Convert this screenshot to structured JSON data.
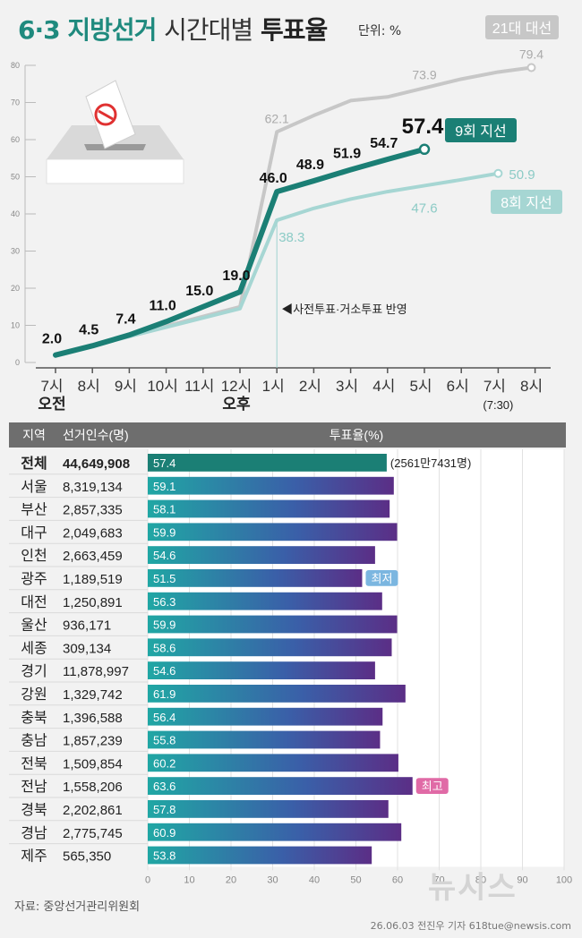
{
  "header": {
    "title_num": "6·3",
    "title_main": "지방선거",
    "title_sub": "시간대별",
    "title_end": "투표율",
    "unit": "단위: %"
  },
  "chart_data": [
    {
      "type": "line",
      "ylim": [
        0,
        80
      ],
      "yticks": [
        0,
        10,
        20,
        30,
        40,
        50,
        60,
        70,
        80
      ],
      "categories": [
        "7시",
        "8시",
        "9시",
        "10시",
        "11시",
        "12시",
        "1시",
        "2시",
        "3시",
        "4시",
        "5시",
        "6시",
        "7시",
        "8시"
      ],
      "x_sub_labels": [
        {
          "index": 0,
          "text": "오전"
        },
        {
          "index": 5,
          "text": "오후"
        },
        {
          "index": 12,
          "text": "(7:30)"
        }
      ],
      "annotation": "◀사전투표·거소투표 반영",
      "series": [
        {
          "name": "21대 대선",
          "color": "#c7c7c7",
          "points": [
            [
              0,
              2.0
            ],
            [
              5,
              15.0
            ],
            [
              6,
              62.1
            ],
            [
              7,
              66.5
            ],
            [
              8,
              70.5
            ],
            [
              9,
              71.5
            ],
            [
              10,
              73.9
            ],
            [
              11,
              76.3
            ],
            [
              12,
              78.2
            ],
            [
              12.9,
              79.4
            ]
          ],
          "labels": [
            [
              6,
              "62.1"
            ],
            [
              10,
              "73.9"
            ],
            [
              12.9,
              "79.4"
            ]
          ]
        },
        {
          "name": "8회 지선",
          "color": "#a6d6d3",
          "points": [
            [
              0,
              2.0
            ],
            [
              5,
              14.5
            ],
            [
              6,
              38.3
            ],
            [
              7,
              41.5
            ],
            [
              8,
              44.0
            ],
            [
              9,
              46.0
            ],
            [
              10,
              47.6
            ],
            [
              11,
              49.2
            ],
            [
              12,
              50.9
            ]
          ],
          "labels": [
            [
              6,
              "38.3"
            ],
            [
              10,
              "47.6"
            ],
            [
              12,
              "50.9"
            ]
          ]
        },
        {
          "name": "9회 지선",
          "color": "#1b7f75",
          "points": [
            [
              0,
              2.0
            ],
            [
              1,
              4.5
            ],
            [
              2,
              7.4
            ],
            [
              3,
              11.0
            ],
            [
              4,
              15.0
            ],
            [
              5,
              19.0
            ],
            [
              6,
              46.0
            ],
            [
              7,
              48.9
            ],
            [
              8,
              51.9
            ],
            [
              9,
              54.7
            ],
            [
              10,
              57.4
            ]
          ],
          "labels": [
            [
              0,
              "2.0"
            ],
            [
              1,
              "4.5"
            ],
            [
              2,
              "7.4"
            ],
            [
              3,
              "11.0"
            ],
            [
              4,
              "15.0"
            ],
            [
              5,
              "19.0"
            ],
            [
              6,
              "46.0"
            ],
            [
              7,
              "48.9"
            ],
            [
              8,
              "51.9"
            ],
            [
              9,
              "54.7"
            ],
            [
              10,
              "57.4"
            ]
          ]
        }
      ]
    },
    {
      "type": "bar",
      "headers": [
        "지역",
        "선거인수(명)",
        "투표율(%)"
      ],
      "xlim": [
        0,
        100
      ],
      "xticks": [
        0,
        10,
        20,
        30,
        40,
        50,
        60,
        70,
        80,
        90,
        100
      ],
      "rows": [
        {
          "region": "전체",
          "voters": "44,649,908",
          "value": 57.4,
          "label": "57.4",
          "note": "(2561만7431명)",
          "total": true
        },
        {
          "region": "서울",
          "voters": "8,319,134",
          "value": 59.1,
          "label": "59.1"
        },
        {
          "region": "부산",
          "voters": "2,857,335",
          "value": 58.1,
          "label": "58.1"
        },
        {
          "region": "대구",
          "voters": "2,049,683",
          "value": 59.9,
          "label": "59.9"
        },
        {
          "region": "인천",
          "voters": "2,663,459",
          "value": 54.6,
          "label": "54.6"
        },
        {
          "region": "광주",
          "voters": "1,189,519",
          "value": 51.5,
          "label": "51.5",
          "badge": "최저",
          "badge_color": "#7bb6e0"
        },
        {
          "region": "대전",
          "voters": "1,250,891",
          "value": 56.3,
          "label": "56.3"
        },
        {
          "region": "울산",
          "voters": "936,171",
          "value": 59.9,
          "label": "59.9"
        },
        {
          "region": "세종",
          "voters": "309,134",
          "value": 58.6,
          "label": "58.6"
        },
        {
          "region": "경기",
          "voters": "11,878,997",
          "value": 54.6,
          "label": "54.6"
        },
        {
          "region": "강원",
          "voters": "1,329,742",
          "value": 61.9,
          "label": "61.9"
        },
        {
          "region": "충북",
          "voters": "1,396,588",
          "value": 56.4,
          "label": "56.4"
        },
        {
          "region": "충남",
          "voters": "1,857,239",
          "value": 55.8,
          "label": "55.8"
        },
        {
          "region": "전북",
          "voters": "1,509,854",
          "value": 60.2,
          "label": "60.2"
        },
        {
          "region": "전남",
          "voters": "1,558,206",
          "value": 63.6,
          "label": "63.6",
          "badge": "최고",
          "badge_color": "#e06aa6"
        },
        {
          "region": "경북",
          "voters": "2,202,861",
          "value": 57.8,
          "label": "57.8"
        },
        {
          "region": "경남",
          "voters": "2,775,745",
          "value": 60.9,
          "label": "60.9"
        },
        {
          "region": "제주",
          "voters": "565,350",
          "value": 53.8,
          "label": "53.8"
        }
      ]
    }
  ],
  "footer": {
    "source": "자료: 중앙선거관리위원회",
    "credit": "26.06.03 전진우 기자 618tue@newsis.com",
    "watermark": "뉴시스"
  }
}
